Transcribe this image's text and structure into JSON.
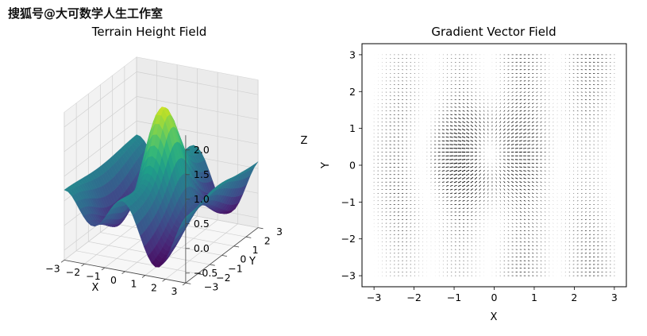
{
  "watermark": "搜狐号@大可数学人生工作室",
  "chart_data": [
    {
      "type": "surface3d",
      "title": "Terrain Height Field",
      "xlabel": "X",
      "ylabel": "Y",
      "zlabel": "Z",
      "x_ticks": [
        "−3",
        "−2",
        "−1",
        "0",
        "1",
        "2",
        "3"
      ],
      "y_ticks": [
        "−3",
        "−2",
        "−1",
        "0",
        "1",
        "2",
        "3"
      ],
      "z_ticks": [
        "−0.5",
        "0.0",
        "0.5",
        "1.0",
        "1.5",
        "2.0"
      ],
      "xlim": [
        -3,
        3
      ],
      "ylim": [
        -3,
        3
      ],
      "zlim": [
        -0.7,
        2.3
      ],
      "colormap": "viridis",
      "grid": true
    },
    {
      "type": "quiver",
      "title": "Gradient Vector Field",
      "xlabel": "X",
      "ylabel": "Y",
      "x_ticks": [
        "−3",
        "−2",
        "−1",
        "0",
        "1",
        "2",
        "3"
      ],
      "y_ticks": [
        "−3",
        "−2",
        "−1",
        "0",
        "1",
        "2",
        "3"
      ],
      "xlim": [
        -3.3,
        3.3
      ],
      "ylim": [
        -3.3,
        3.3
      ],
      "arrow_color": "#000000",
      "grid": false
    }
  ]
}
